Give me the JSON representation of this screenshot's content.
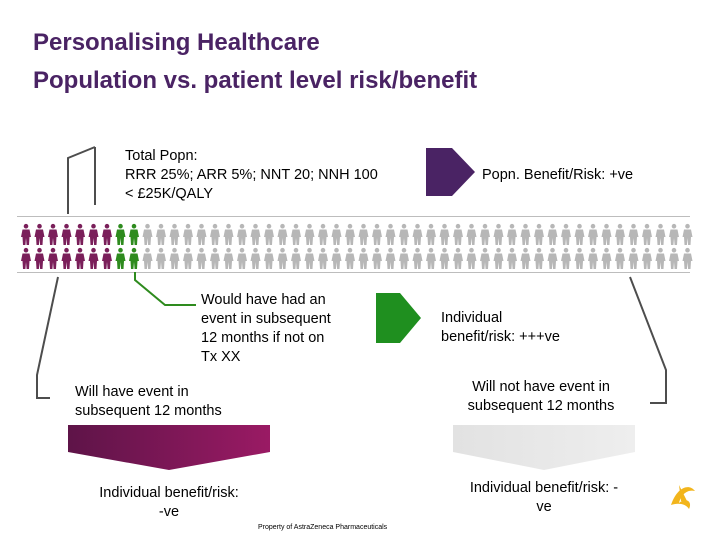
{
  "slide": {
    "title_line1": "Personalising Healthcare",
    "title_line2": "Population vs. patient level risk/benefit"
  },
  "total_popn": {
    "line1": "Total Popn:",
    "line2": "RRR 25%; ARR 5%; NNT 20; NNH 100",
    "line3": "< £25K/QALY"
  },
  "popn_benefit": "Popn. Benefit/Risk: +ve",
  "event_text": {
    "line1": "Would have had an",
    "line2": "event in subsequent",
    "line3": "12 months if not on",
    "line4": "Tx XX"
  },
  "individual_benefit_plus": {
    "line1": "Individual",
    "line2": "benefit/risk: +++ve"
  },
  "will_have_event": {
    "line1": "Will have event in",
    "line2": "subsequent 12 months"
  },
  "will_not_have_event": {
    "line1": "Will not have event in",
    "line2": "subsequent 12 months"
  },
  "individual_benefit_neg": {
    "line1": "Individual benefit/risk:",
    "line2": "-ve"
  },
  "individual_benefit_neutral": {
    "line1": "Individual benefit/risk: -",
    "line2": "ve"
  },
  "footer": "Property of AstraZeneca Pharmaceuticals",
  "population": {
    "rows": 2,
    "per_row": 50,
    "purple_per_row": 7,
    "green_per_row": 2
  },
  "colors": {
    "title": "#4a2364",
    "purple_figure": "#7a1f5a",
    "green_figure": "#2e8b1e",
    "grey_figure": "#b7b7b7",
    "dark_arrow": "#4a2364",
    "green_arrow": "#1f8f1f",
    "logo": "#f2b51c"
  },
  "icons": {
    "logo": "astrazeneca-logo"
  }
}
